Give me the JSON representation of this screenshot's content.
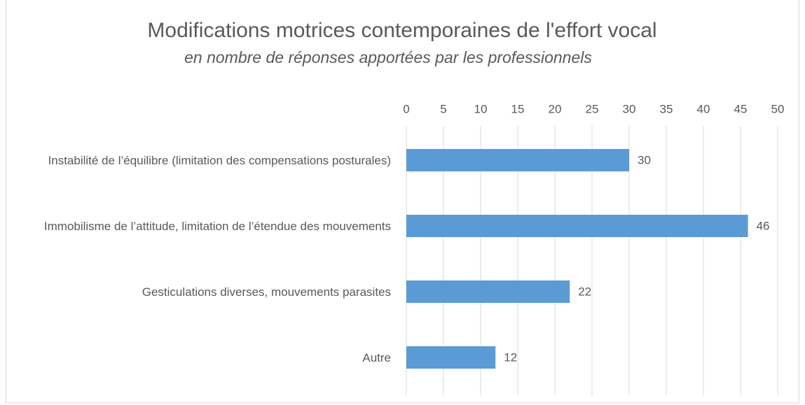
{
  "chart_data": {
    "type": "bar",
    "orientation": "horizontal",
    "title": "Modifications motrices contemporaines de l'effort vocal",
    "subtitle": "en nombre de réponses apportées par les professionnels",
    "categories": [
      "Instabilité de l’équilibre (limitation des compensations posturales)",
      "Immobilisme de l’attitude, limitation de l’étendue des mouvements",
      "Gesticulations diverses, mouvements parasites",
      "Autre"
    ],
    "values": [
      30,
      46,
      22,
      12
    ],
    "color": "#5b9bd5",
    "xlim": [
      0,
      50
    ],
    "xticks": [
      0,
      5,
      10,
      15,
      20,
      25,
      30,
      35,
      40,
      45,
      50
    ],
    "grid": true,
    "axis_position": "top"
  }
}
